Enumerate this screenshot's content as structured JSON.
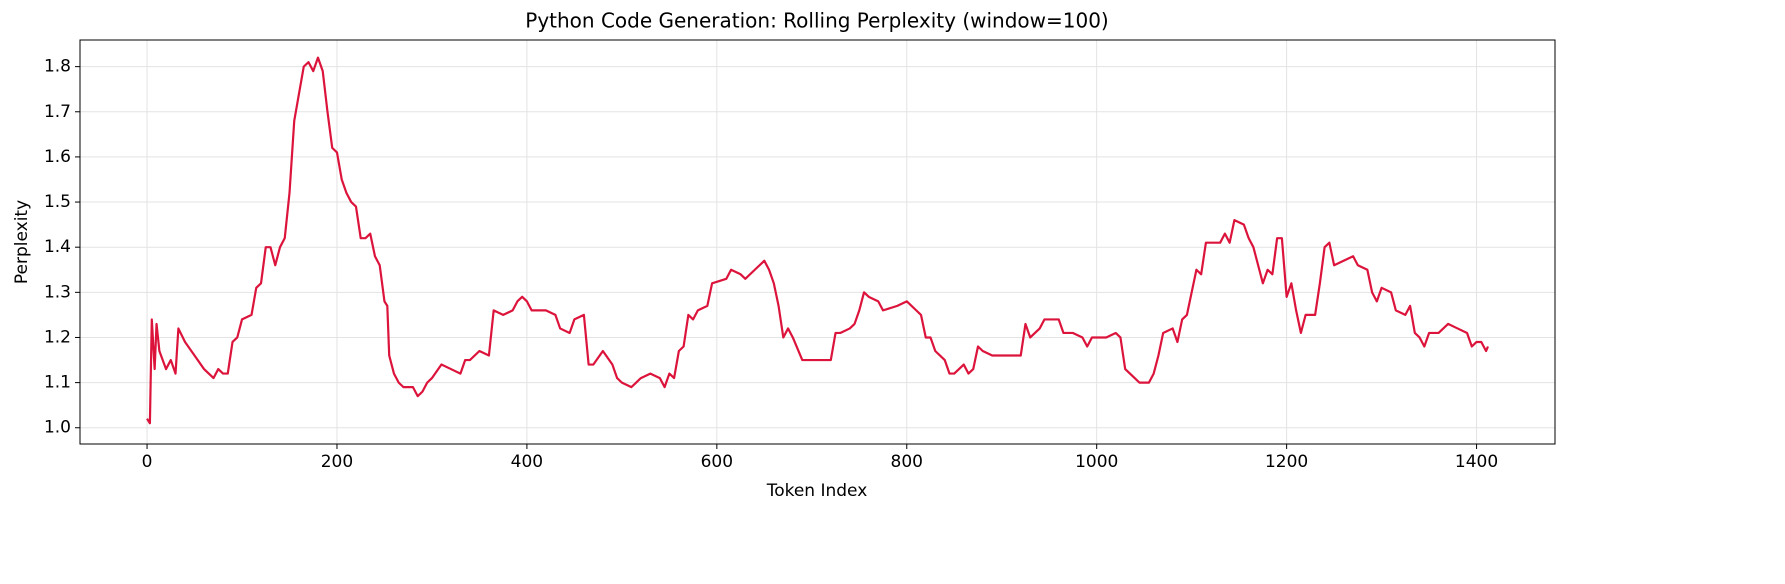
{
  "chart_data": {
    "type": "line",
    "title": "Python Code Generation: Rolling Perplexity (window=100)",
    "x_label": "Token Index",
    "y_label": "Perplexity",
    "xlim": [
      -70.6,
      1482.6
    ],
    "ylim": [
      0.964,
      1.859
    ],
    "xticks": [
      0,
      200,
      400,
      600,
      800,
      1000,
      1200,
      1400
    ],
    "yticks": [
      {
        "value": 1,
        "label": "1.0"
      },
      1.1,
      1.2,
      1.3,
      1.4,
      1.5,
      1.6,
      1.7,
      1.8
    ],
    "grid": true,
    "series": [
      {
        "color": "#dc143c",
        "x": [
          0,
          3,
          5,
          8,
          10,
          13,
          20,
          25,
          30,
          33,
          40,
          50,
          60,
          70,
          75,
          80,
          85,
          90,
          95,
          100,
          110,
          115,
          120,
          125,
          130,
          135,
          140,
          145,
          150,
          155,
          160,
          165,
          170,
          175,
          180,
          185,
          190,
          195,
          200,
          205,
          210,
          215,
          220,
          225,
          230,
          235,
          240,
          245,
          250,
          253,
          255,
          260,
          265,
          270,
          280,
          285,
          290,
          295,
          300,
          310,
          320,
          330,
          335,
          340,
          350,
          360,
          365,
          375,
          385,
          390,
          395,
          400,
          405,
          410,
          420,
          430,
          435,
          445,
          450,
          460,
          465,
          470,
          480,
          490,
          495,
          500,
          510,
          520,
          530,
          540,
          545,
          550,
          555,
          560,
          565,
          570,
          575,
          580,
          590,
          595,
          610,
          615,
          625,
          630,
          640,
          650,
          655,
          660,
          665,
          670,
          675,
          680,
          690,
          700,
          710,
          720,
          725,
          730,
          740,
          745,
          750,
          755,
          760,
          770,
          775,
          790,
          800,
          810,
          815,
          820,
          825,
          830,
          840,
          845,
          850,
          860,
          865,
          870,
          875,
          880,
          890,
          900,
          920,
          925,
          930,
          940,
          945,
          955,
          960,
          965,
          975,
          985,
          990,
          995,
          1010,
          1020,
          1025,
          1030,
          1035,
          1040,
          1045,
          1055,
          1060,
          1065,
          1070,
          1080,
          1085,
          1090,
          1095,
          1100,
          1105,
          1110,
          1115,
          1120,
          1130,
          1135,
          1140,
          1145,
          1155,
          1160,
          1165,
          1170,
          1175,
          1180,
          1185,
          1190,
          1195,
          1200,
          1205,
          1210,
          1215,
          1220,
          1230,
          1235,
          1240,
          1245,
          1250,
          1260,
          1270,
          1275,
          1285,
          1290,
          1295,
          1300,
          1310,
          1315,
          1325,
          1330,
          1335,
          1340,
          1345,
          1350,
          1360,
          1370,
          1380,
          1390,
          1395,
          1400,
          1405,
          1410,
          1412
        ],
        "values": [
          1.02,
          1.01,
          1.24,
          1.13,
          1.23,
          1.17,
          1.13,
          1.15,
          1.12,
          1.22,
          1.19,
          1.16,
          1.13,
          1.11,
          1.13,
          1.12,
          1.12,
          1.19,
          1.2,
          1.24,
          1.25,
          1.31,
          1.32,
          1.4,
          1.4,
          1.36,
          1.4,
          1.42,
          1.52,
          1.68,
          1.74,
          1.8,
          1.81,
          1.79,
          1.82,
          1.79,
          1.7,
          1.62,
          1.61,
          1.55,
          1.52,
          1.5,
          1.49,
          1.42,
          1.42,
          1.43,
          1.38,
          1.36,
          1.28,
          1.27,
          1.16,
          1.12,
          1.1,
          1.09,
          1.09,
          1.07,
          1.08,
          1.1,
          1.11,
          1.14,
          1.13,
          1.12,
          1.15,
          1.15,
          1.17,
          1.16,
          1.26,
          1.25,
          1.26,
          1.28,
          1.29,
          1.28,
          1.26,
          1.26,
          1.26,
          1.25,
          1.22,
          1.21,
          1.24,
          1.25,
          1.14,
          1.14,
          1.17,
          1.14,
          1.11,
          1.1,
          1.09,
          1.11,
          1.12,
          1.11,
          1.09,
          1.12,
          1.11,
          1.17,
          1.18,
          1.25,
          1.24,
          1.26,
          1.27,
          1.32,
          1.33,
          1.35,
          1.34,
          1.33,
          1.35,
          1.37,
          1.35,
          1.32,
          1.27,
          1.2,
          1.22,
          1.2,
          1.15,
          1.15,
          1.15,
          1.15,
          1.21,
          1.21,
          1.22,
          1.23,
          1.26,
          1.3,
          1.29,
          1.28,
          1.26,
          1.27,
          1.28,
          1.26,
          1.25,
          1.2,
          1.2,
          1.17,
          1.15,
          1.12,
          1.12,
          1.14,
          1.12,
          1.13,
          1.18,
          1.17,
          1.16,
          1.16,
          1.16,
          1.23,
          1.2,
          1.22,
          1.24,
          1.24,
          1.24,
          1.21,
          1.21,
          1.2,
          1.18,
          1.2,
          1.2,
          1.21,
          1.2,
          1.13,
          1.12,
          1.11,
          1.1,
          1.1,
          1.12,
          1.16,
          1.21,
          1.22,
          1.19,
          1.24,
          1.25,
          1.3,
          1.35,
          1.34,
          1.41,
          1.41,
          1.41,
          1.43,
          1.41,
          1.46,
          1.45,
          1.42,
          1.4,
          1.36,
          1.32,
          1.35,
          1.34,
          1.42,
          1.42,
          1.29,
          1.32,
          1.26,
          1.21,
          1.25,
          1.25,
          1.32,
          1.4,
          1.41,
          1.36,
          1.37,
          1.38,
          1.36,
          1.35,
          1.3,
          1.28,
          1.31,
          1.3,
          1.26,
          1.25,
          1.27,
          1.21,
          1.2,
          1.18,
          1.21,
          1.21,
          1.23,
          1.22,
          1.21,
          1.18,
          1.19,
          1.19,
          1.17,
          1.18
        ]
      }
    ]
  }
}
